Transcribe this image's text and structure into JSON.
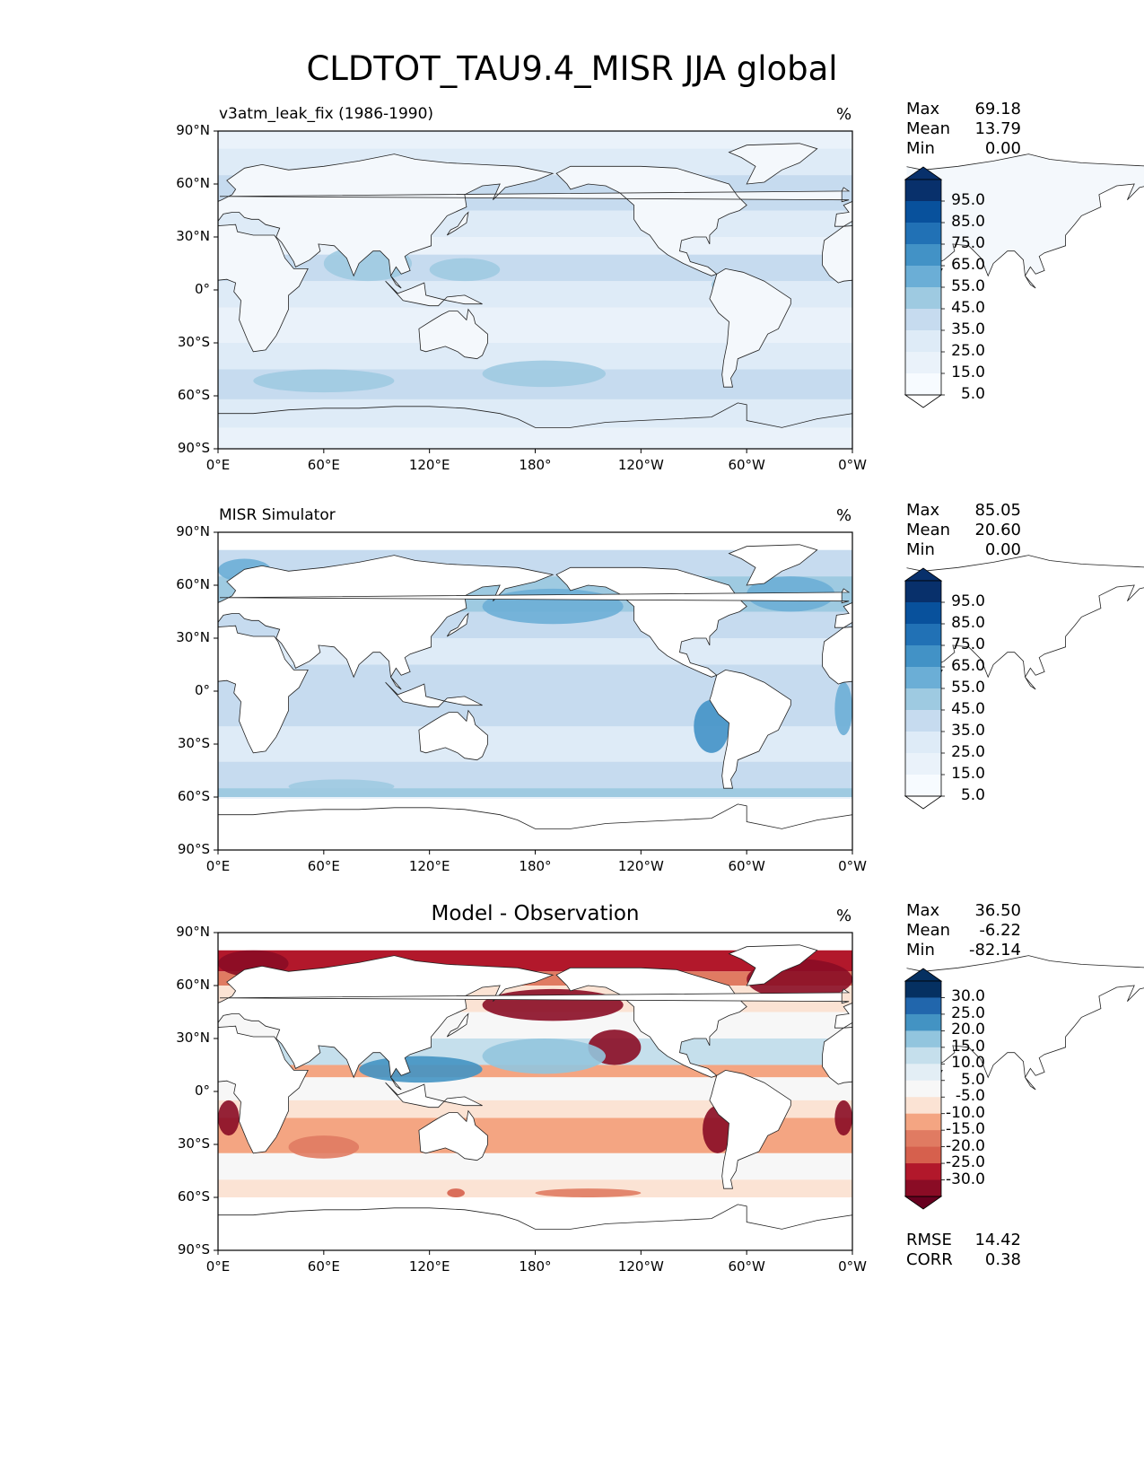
{
  "title": "CLDTOT_TAU9.4_MISR JJA global",
  "chart_data": [
    {
      "type": "heatmap",
      "title": "v3atm_leak_fix (1986-1990)",
      "units": "%",
      "x_ticks": [
        "0°E",
        "60°E",
        "120°E",
        "180°",
        "120°W",
        "60°W",
        "0°W"
      ],
      "y_ticks": [
        "90°N",
        "60°N",
        "30°N",
        "0°",
        "30°S",
        "60°S",
        "90°S"
      ],
      "xlim": [
        0,
        360
      ],
      "ylim": [
        -90,
        90
      ],
      "stats": {
        "max_label": "Max",
        "max": "69.18",
        "mean_label": "Mean",
        "mean": "13.79",
        "min_label": "Min",
        "min": "0.00"
      },
      "colorbar": {
        "labels": [
          "95.0",
          "85.0",
          "75.0",
          "65.0",
          "55.0",
          "45.0",
          "35.0",
          "25.0",
          "15.0",
          "5.0"
        ],
        "colors_top_to_bottom": [
          "#08306b",
          "#08519c",
          "#2171b5",
          "#4292c6",
          "#6baed6",
          "#9ecae1",
          "#c6dbef",
          "#deebf7",
          "#eaf2fa",
          "#f7fbff"
        ],
        "extend_top": "#08306b",
        "extend_bottom": "#ffffff"
      }
    },
    {
      "type": "heatmap",
      "title": "MISR Simulator",
      "units": "%",
      "x_ticks": [
        "0°E",
        "60°E",
        "120°E",
        "180°",
        "120°W",
        "60°W",
        "0°W"
      ],
      "y_ticks": [
        "90°N",
        "60°N",
        "30°N",
        "0°",
        "30°S",
        "60°S",
        "90°S"
      ],
      "xlim": [
        0,
        360
      ],
      "ylim": [
        -90,
        90
      ],
      "stats": {
        "max_label": "Max",
        "max": "85.05",
        "mean_label": "Mean",
        "mean": "20.60",
        "min_label": "Min",
        "min": "0.00"
      },
      "colorbar": {
        "labels": [
          "95.0",
          "85.0",
          "75.0",
          "65.0",
          "55.0",
          "45.0",
          "35.0",
          "25.0",
          "15.0",
          "5.0"
        ],
        "colors_top_to_bottom": [
          "#08306b",
          "#08519c",
          "#2171b5",
          "#4292c6",
          "#6baed6",
          "#9ecae1",
          "#c6dbef",
          "#deebf7",
          "#eaf2fa",
          "#f7fbff"
        ],
        "extend_top": "#08306b",
        "extend_bottom": "#ffffff"
      }
    },
    {
      "type": "heatmap",
      "title": "Model - Observation",
      "units": "%",
      "x_ticks": [
        "0°E",
        "60°E",
        "120°E",
        "180°",
        "120°W",
        "60°W",
        "0°W"
      ],
      "y_ticks": [
        "90°N",
        "60°N",
        "30°N",
        "0°",
        "30°S",
        "60°S",
        "90°S"
      ],
      "xlim": [
        0,
        360
      ],
      "ylim": [
        -90,
        90
      ],
      "stats": {
        "max_label": "Max",
        "max": "36.50",
        "mean_label": "Mean",
        "mean": "-6.22",
        "min_label": "Min",
        "min": "-82.14"
      },
      "metrics": {
        "rmse_label": "RMSE",
        "rmse": "14.42",
        "corr_label": "CORR",
        "corr": "0.38"
      },
      "colorbar": {
        "labels": [
          "30.0",
          "25.0",
          "20.0",
          "15.0",
          "10.0",
          "5.0",
          "-5.0",
          "-10.0",
          "-15.0",
          "-20.0",
          "-25.0",
          "-30.0"
        ],
        "colors_top_to_bottom": [
          "#053061",
          "#2166ac",
          "#4393c3",
          "#92c5de",
          "#c5dfec",
          "#e3eef5",
          "#f7f7f7",
          "#fbe3d4",
          "#f4a582",
          "#e07b62",
          "#d6604d",
          "#b2182b",
          "#8a0c25"
        ],
        "extend_top": "#053061",
        "extend_bottom": "#67001f"
      }
    }
  ]
}
